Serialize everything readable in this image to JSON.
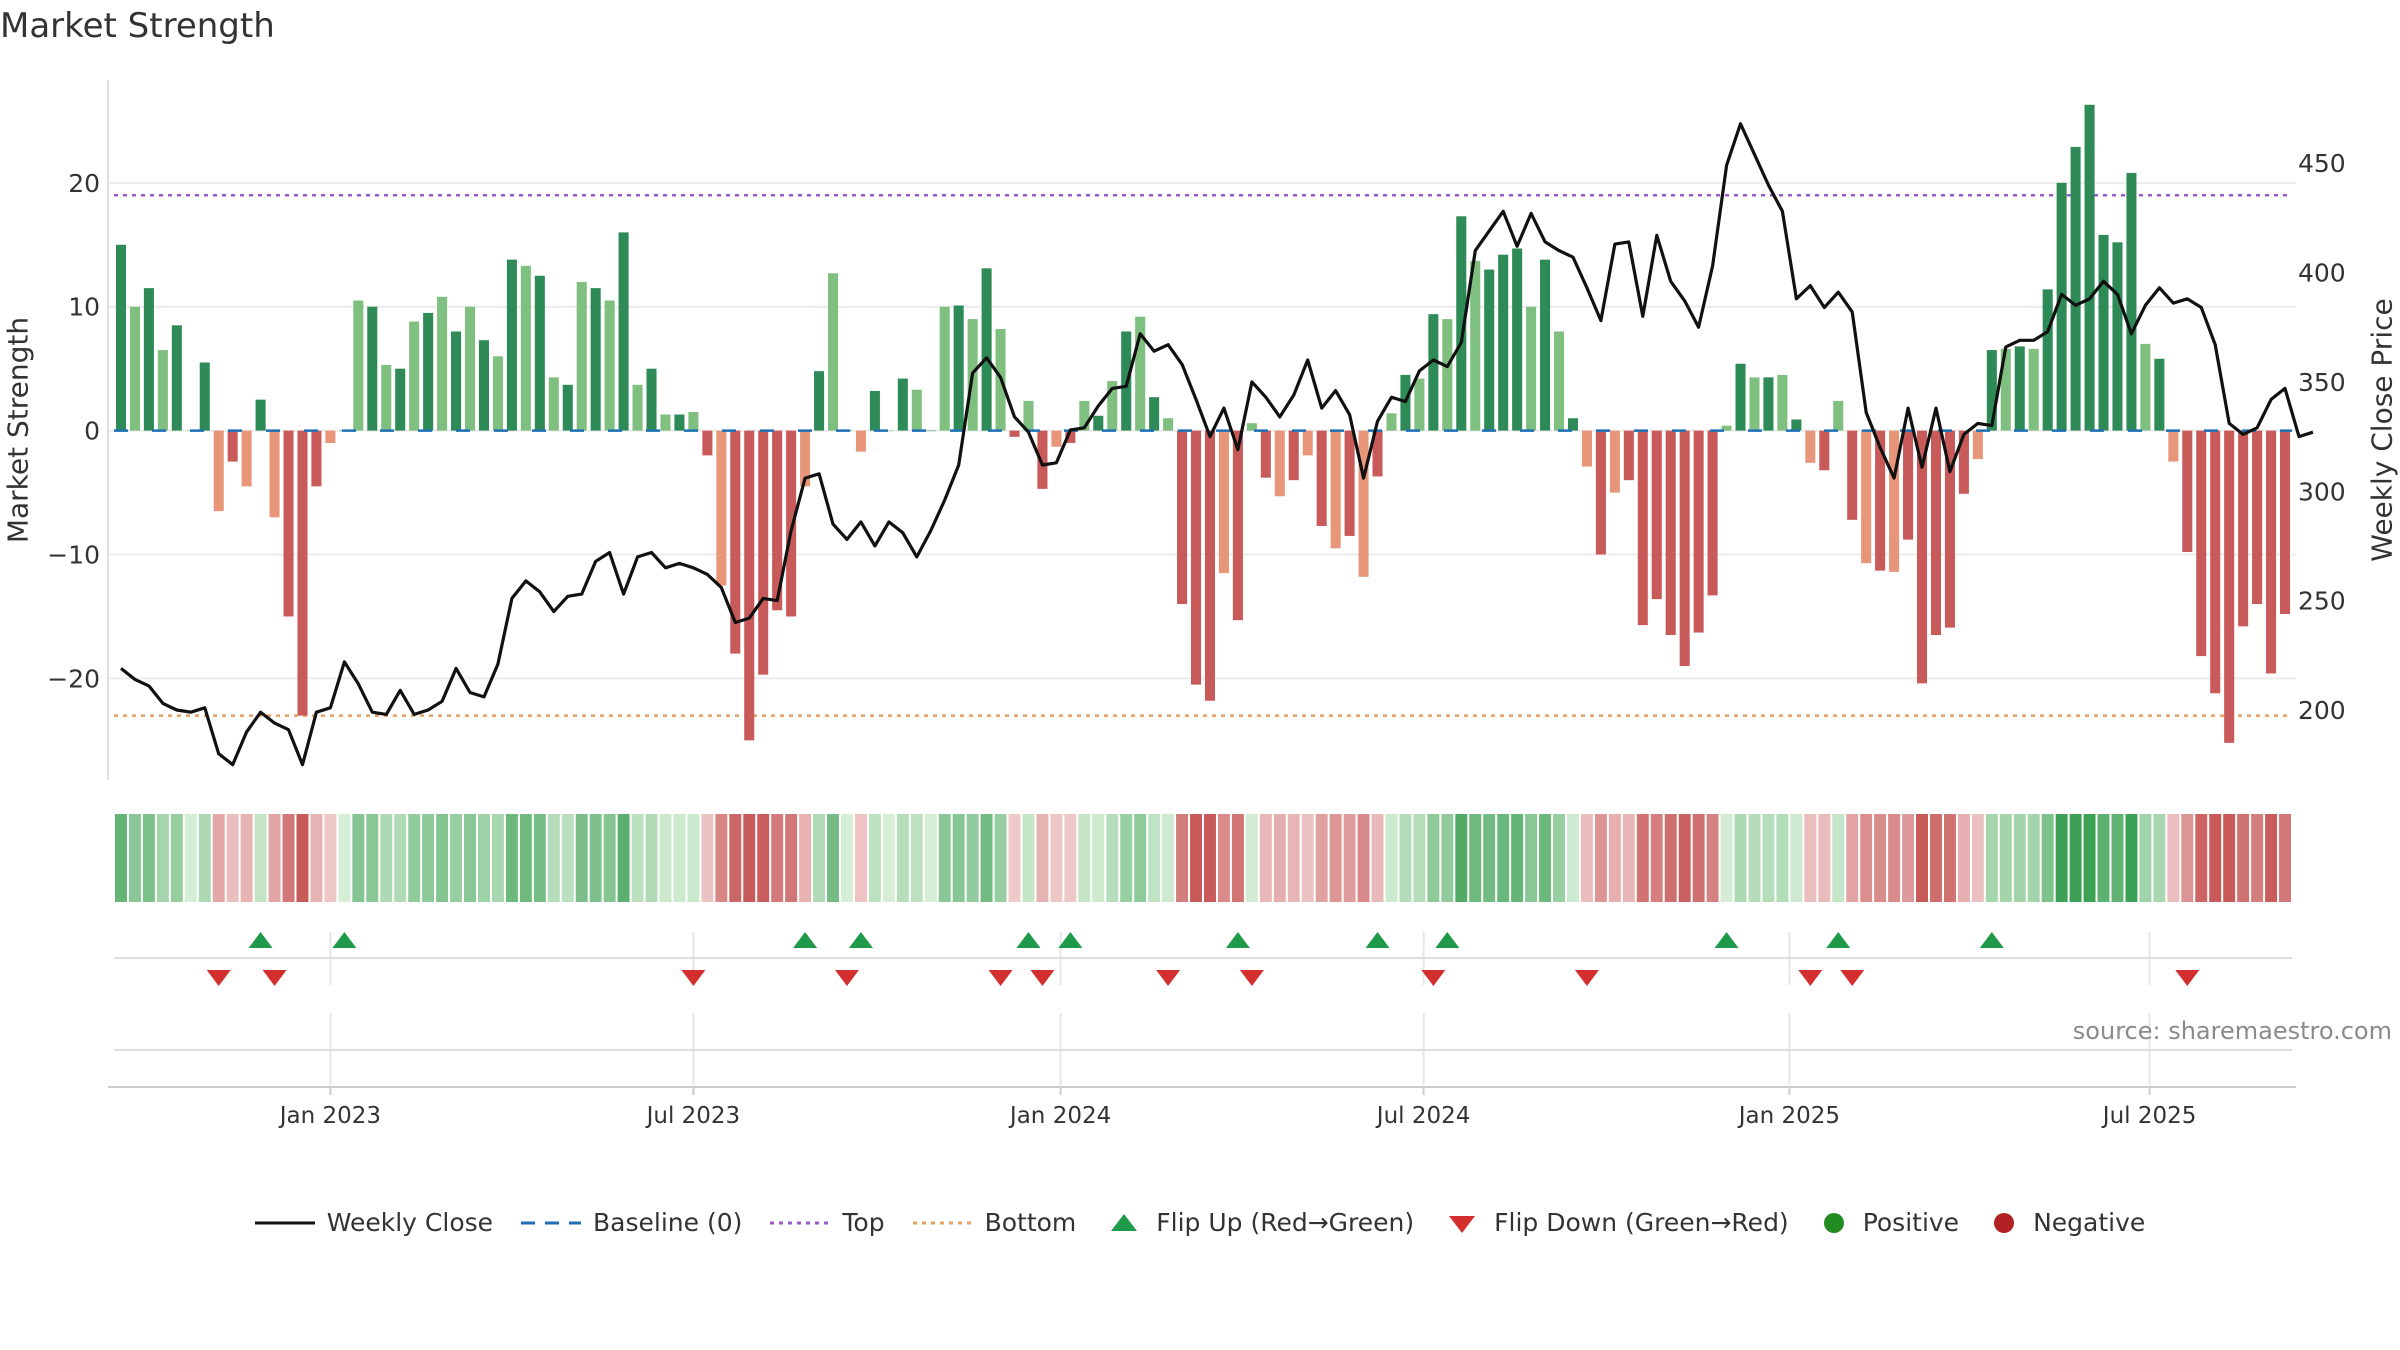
{
  "title": "Market Strength",
  "source": "source: sharemaestro.com",
  "chart_data": {
    "type": "bar+line",
    "title": "Market Strength",
    "ylabel_left": "Market Strength",
    "ylabel_right": "Weekly Close Price",
    "ylim_left": [
      -28.2,
      28.3
    ],
    "ylim_right": [
      168,
      488
    ],
    "yticks_left": [
      -20,
      -10,
      0,
      10,
      20
    ],
    "yticks_right": [
      200,
      250,
      300,
      350,
      400,
      450
    ],
    "top_level": 19,
    "bottom_level": -23,
    "xticks": [
      "Jan 2023",
      "Jul 2023",
      "Jan 2024",
      "Jul 2024",
      "Jan 2025",
      "Jul 2025"
    ],
    "xtick_week_index": [
      15,
      41,
      67.3,
      93.3,
      119.5,
      145.3
    ],
    "strength": [
      15,
      10,
      11.5,
      6.5,
      8.5,
      0,
      5.5,
      -6.5,
      -2.5,
      -4.5,
      2.5,
      -7,
      -15,
      -23,
      -4.5,
      -1,
      0,
      10.5,
      10,
      5.3,
      5,
      8.8,
      9.5,
      10.8,
      8,
      10,
      7.3,
      6,
      13.8,
      13.3,
      12.5,
      4.3,
      3.7,
      12,
      11.5,
      10.5,
      16,
      3.7,
      5,
      1.3,
      1.3,
      1.5,
      -2,
      -12.5,
      -18,
      -25,
      -19.7,
      -14.5,
      -15,
      -4.5,
      4.8,
      12.7,
      0,
      -1.7,
      3.2,
      0,
      4.2,
      3.3,
      0,
      10,
      10.1,
      9,
      13.1,
      8.2,
      -0.5,
      2.4,
      -4.7,
      -1.3,
      -1,
      2.4,
      1.2,
      4,
      8,
      9.2,
      2.7,
      1,
      -14,
      -20.5,
      -21.8,
      -11.5,
      -15.3,
      0.6,
      -3.8,
      -5.3,
      -4,
      -2,
      -7.7,
      -9.5,
      -8.5,
      -11.8,
      -3.7,
      1.4,
      4.5,
      4.2,
      9.4,
      9,
      17.3,
      13.7,
      13,
      14.2,
      14.7,
      10,
      13.8,
      8,
      1,
      -2.9,
      -10,
      -5,
      -4,
      -15.7,
      -13.6,
      -16.5,
      -19,
      -16.3,
      -13.3,
      0.4,
      5.4,
      4.3,
      4.3,
      4.5,
      0.9,
      -2.6,
      -3.2,
      2.4,
      -7.2,
      -10.7,
      -11.3,
      -11.4,
      -8.8,
      -20.4,
      -16.5,
      -15.9,
      -5.1,
      -2.3,
      6.5,
      6.6,
      6.8,
      6.6,
      11.4,
      20,
      22.9,
      26.3,
      15.8,
      15.2,
      20.8,
      7,
      5.8,
      -2.5,
      -9.8,
      -18.2,
      -21.2,
      -25.2,
      -15.8,
      -14,
      -19.6,
      -14.8
    ],
    "weekly_close": [
      219,
      214,
      211,
      203,
      200,
      199,
      201,
      180,
      175,
      190,
      199,
      194,
      191,
      175,
      199,
      201,
      222,
      212,
      199,
      198,
      209,
      198,
      200,
      204,
      219,
      208,
      206,
      221,
      251,
      259,
      254,
      245,
      252,
      253,
      268,
      272,
      253,
      270,
      272,
      265,
      267,
      265,
      262,
      256,
      240,
      242,
      251,
      250,
      282,
      306,
      308,
      285,
      278,
      286,
      275,
      286,
      281,
      270,
      282,
      296,
      312,
      354,
      361,
      352,
      334,
      327,
      312,
      313,
      328,
      329,
      339,
      347,
      348,
      372,
      364,
      367,
      358,
      342,
      325,
      338,
      319,
      350,
      343,
      334,
      344,
      360,
      338,
      346,
      335,
      306,
      332,
      343,
      341,
      355,
      360,
      357,
      368,
      410,
      419,
      428,
      412,
      427,
      414,
      410,
      407,
      393,
      378,
      413,
      414,
      380,
      417,
      396,
      387,
      375,
      403,
      449,
      468,
      454,
      440,
      428,
      388,
      394,
      384,
      391,
      382,
      336,
      320,
      306,
      338,
      311,
      338,
      309,
      326,
      331,
      330,
      366,
      369,
      369,
      373,
      390,
      385,
      388,
      396,
      390,
      372,
      385,
      393,
      386,
      388,
      384,
      367,
      331,
      326,
      329,
      342,
      347,
      325,
      327
    ],
    "flip_up_weeks": [
      10,
      16,
      49,
      53,
      65,
      68,
      80,
      90,
      95,
      115,
      123,
      134
    ],
    "flip_down_weeks": [
      7,
      11,
      41,
      52,
      63,
      66,
      75,
      81,
      94,
      105,
      121,
      124,
      148
    ],
    "heatmap": "one cell per week coloured by market strength (green = positive, red = negative)",
    "legend": [
      "Weekly Close",
      "Baseline (0)",
      "Top",
      "Bottom",
      "Flip Up (Red→Green)",
      "Flip Down (Green→Red)",
      "Positive",
      "Negative"
    ],
    "colors": {
      "line": "#111111",
      "baseline": "#1f6fb4",
      "top": "#9b59d0",
      "bottom": "#e8a060",
      "pos_strong": "#2e8b57",
      "pos_light": "#7fbf7f",
      "neg_strong": "#c85a5a",
      "neg_light": "#e8967a",
      "flip_up": "#1f9a4a",
      "flip_down": "#d32f2f",
      "positive_dot": "#228b22",
      "negative_dot": "#b22222"
    }
  }
}
